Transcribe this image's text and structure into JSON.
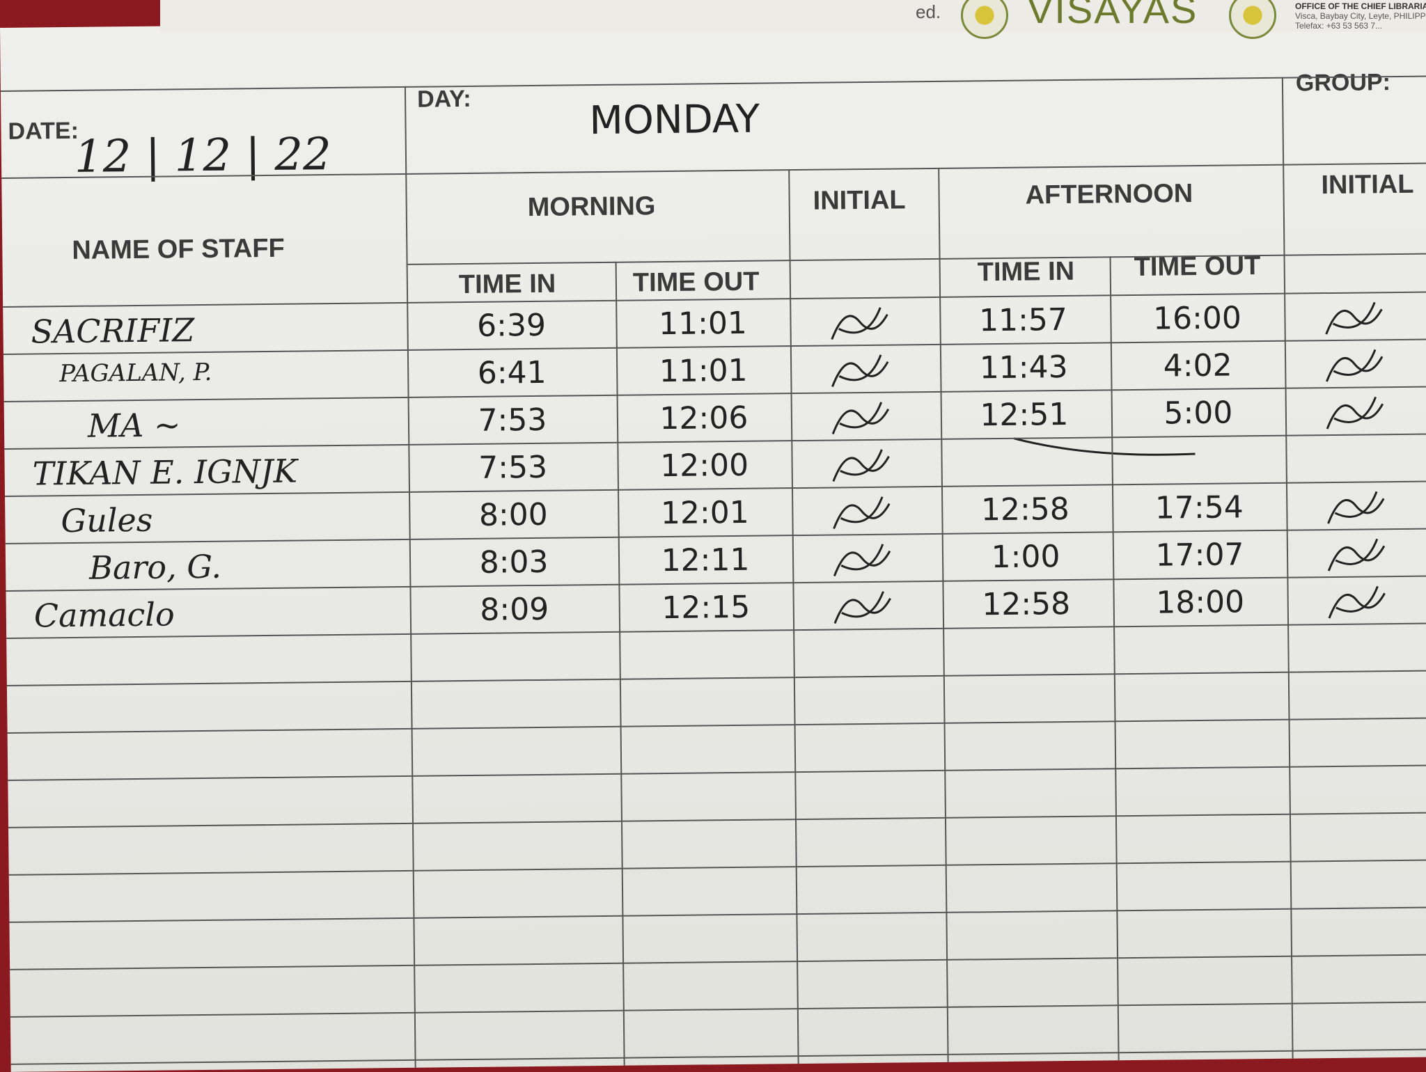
{
  "letterhead": {
    "partial_text": "ed.",
    "university": "VISAYAS",
    "office": "OFFICE OF THE CHIEF LIBRARIAN",
    "address": "Visca, Baybay City, Leyte, PHILIPPINES",
    "telefax": "Telefax: +63 53 563 7..."
  },
  "header": {
    "date_label": "DATE:",
    "date_value": "12 | 12 | 22",
    "day_label": "DAY:",
    "day_value": "MONDAY",
    "group_label": "GROUP:"
  },
  "columns": {
    "name": "NAME OF STAFF",
    "morning": "MORNING",
    "initial_morning": "INITIAL",
    "afternoon": "AFTERNOON",
    "initial_afternoon": "INITIAL",
    "time_in": "TIME IN",
    "time_out": "TIME OUT"
  },
  "rows": [
    {
      "name": "SACRIFIZ",
      "am_in": "6:39",
      "am_out": "11:01",
      "pm_in": "11:57",
      "pm_out": "16:00"
    },
    {
      "name": "PAGALAN, P.",
      "am_in": "6:41",
      "am_out": "11:01",
      "pm_in": "11:43",
      "pm_out": "4:02"
    },
    {
      "name": "MA ~",
      "am_in": "7:53",
      "am_out": "12:06",
      "pm_in": "12:51",
      "pm_out": "5:00"
    },
    {
      "name": "TIKAN E. IGNJK",
      "am_in": "7:53",
      "am_out": "12:00",
      "pm_in": "",
      "pm_out": ""
    },
    {
      "name": "Gules",
      "am_in": "8:00",
      "am_out": "12:01",
      "pm_in": "12:58",
      "pm_out": "17:54"
    },
    {
      "name": "Baro, G.",
      "am_in": "8:03",
      "am_out": "12:11",
      "pm_in": "1:00",
      "pm_out": "17:07"
    },
    {
      "name": "Camaclo",
      "am_in": "8:09",
      "am_out": "12:15",
      "pm_in": "12:58",
      "pm_out": "18:00"
    }
  ],
  "colors": {
    "background": "#8a1a1f",
    "paper": "#ecece8",
    "ink": "#222222",
    "rule": "#555555",
    "logo": "#6b7a2c"
  }
}
